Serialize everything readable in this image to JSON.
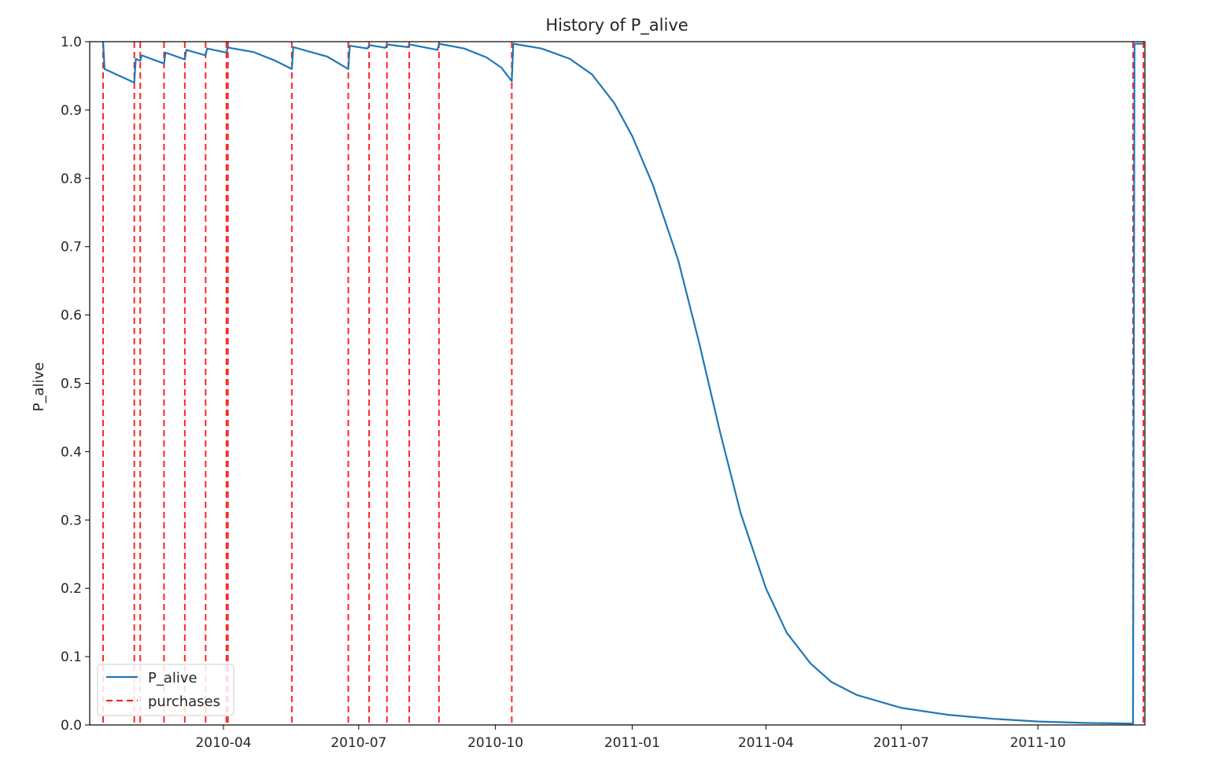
{
  "chart_data": {
    "type": "line",
    "title": "History of P_alive",
    "xlabel": "",
    "ylabel": "P_alive",
    "xlim": [
      "2010-01-01",
      "2011-12-12"
    ],
    "ylim": [
      0,
      1
    ],
    "grid": false,
    "legend_position": "lower-left",
    "y_ticks": [
      "0.0",
      "0.1",
      "0.2",
      "0.3",
      "0.4",
      "0.5",
      "0.6",
      "0.7",
      "0.8",
      "0.9",
      "1.0"
    ],
    "x_ticks": [
      {
        "date": "2010-04-01",
        "label": "2010-04"
      },
      {
        "date": "2010-07-01",
        "label": "2010-07"
      },
      {
        "date": "2010-10-01",
        "label": "2010-10"
      },
      {
        "date": "2011-01-01",
        "label": "2011-01"
      },
      {
        "date": "2011-04-01",
        "label": "2011-04"
      },
      {
        "date": "2011-07-01",
        "label": "2011-07"
      },
      {
        "date": "2011-10-01",
        "label": "2011-10"
      }
    ],
    "series": [
      {
        "name": "P_alive",
        "color": "#1f77b4",
        "style": "solid",
        "points": [
          [
            "2010-01-10",
            1.0
          ],
          [
            "2010-01-11",
            0.96
          ],
          [
            "2010-01-31",
            0.94
          ],
          [
            "2010-02-01",
            0.975
          ],
          [
            "2010-02-04",
            0.972
          ],
          [
            "2010-02-05",
            0.98
          ],
          [
            "2010-02-20",
            0.968
          ],
          [
            "2010-02-21",
            0.984
          ],
          [
            "2010-03-06",
            0.974
          ],
          [
            "2010-03-07",
            0.988
          ],
          [
            "2010-03-20",
            0.98
          ],
          [
            "2010-03-21",
            0.99
          ],
          [
            "2010-04-03",
            0.984
          ],
          [
            "2010-04-04",
            0.993
          ],
          [
            "2010-04-05",
            0.991
          ],
          [
            "2010-04-21",
            0.985
          ],
          [
            "2010-05-06",
            0.972
          ],
          [
            "2010-05-17",
            0.96
          ],
          [
            "2010-05-18",
            0.992
          ],
          [
            "2010-06-10",
            0.978
          ],
          [
            "2010-06-24",
            0.96
          ],
          [
            "2010-06-25",
            0.994
          ],
          [
            "2010-07-07",
            0.99
          ],
          [
            "2010-07-08",
            0.995
          ],
          [
            "2010-07-19",
            0.991
          ],
          [
            "2010-07-20",
            0.996
          ],
          [
            "2010-08-03",
            0.992
          ],
          [
            "2010-08-04",
            0.996
          ],
          [
            "2010-08-23",
            0.988
          ],
          [
            "2010-08-24",
            0.997
          ],
          [
            "2010-09-10",
            0.99
          ],
          [
            "2010-09-25",
            0.977
          ],
          [
            "2010-10-05",
            0.962
          ],
          [
            "2010-10-12",
            0.942
          ],
          [
            "2010-10-13",
            0.997
          ],
          [
            "2010-11-01",
            0.99
          ],
          [
            "2010-11-20",
            0.975
          ],
          [
            "2010-12-05",
            0.952
          ],
          [
            "2010-12-20",
            0.91
          ],
          [
            "2011-01-01",
            0.862
          ],
          [
            "2011-01-15",
            0.79
          ],
          [
            "2011-02-01",
            0.68
          ],
          [
            "2011-02-15",
            0.56
          ],
          [
            "2011-03-01",
            0.43
          ],
          [
            "2011-03-15",
            0.31
          ],
          [
            "2011-04-01",
            0.2
          ],
          [
            "2011-04-15",
            0.135
          ],
          [
            "2011-05-01",
            0.09
          ],
          [
            "2011-05-15",
            0.063
          ],
          [
            "2011-06-01",
            0.044
          ],
          [
            "2011-07-01",
            0.025
          ],
          [
            "2011-08-01",
            0.015
          ],
          [
            "2011-09-01",
            0.009
          ],
          [
            "2011-10-01",
            0.005
          ],
          [
            "2011-11-01",
            0.003
          ],
          [
            "2011-12-04",
            0.002
          ],
          [
            "2011-12-05",
            0.997
          ],
          [
            "2011-12-11",
            0.997
          ]
        ]
      },
      {
        "name": "purchases",
        "color": "#ff0000",
        "style": "dashed",
        "dates": [
          "2010-01-10",
          "2010-01-31",
          "2010-02-04",
          "2010-02-20",
          "2010-03-06",
          "2010-03-20",
          "2010-04-03",
          "2010-04-04",
          "2010-05-17",
          "2010-06-24",
          "2010-07-08",
          "2010-07-20",
          "2010-08-04",
          "2010-08-24",
          "2010-10-12",
          "2011-12-04",
          "2011-12-11"
        ]
      }
    ]
  }
}
